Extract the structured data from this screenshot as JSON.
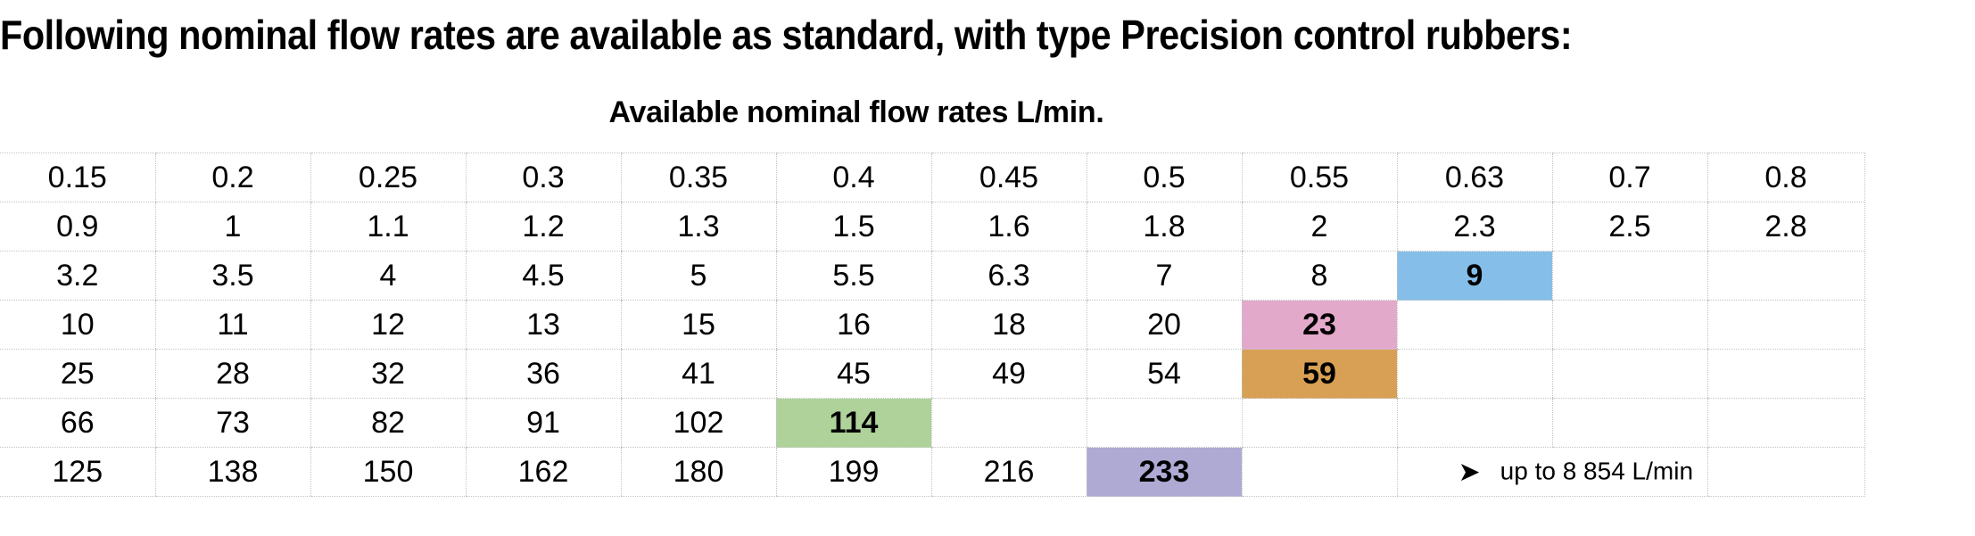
{
  "heading": "Following nominal flow rates are available as standard, with type Precision control rubbers:",
  "table_caption": "Available nominal flow rates L/min.",
  "rows": [
    [
      "0.15",
      "0.2",
      "0.25",
      "0.3",
      "0.35",
      "0.4",
      "0.45",
      "0.5",
      "0.55",
      "0.63",
      "0.7",
      "0.8"
    ],
    [
      "0.9",
      "1",
      "1.1",
      "1.2",
      "1.3",
      "1.5",
      "1.6",
      "1.8",
      "2",
      "2.3",
      "2.5",
      "2.8"
    ],
    [
      "3.2",
      "3.5",
      "4",
      "4.5",
      "5",
      "5.5",
      "6.3",
      "7",
      "8",
      "9",
      "",
      ""
    ],
    [
      "10",
      "11",
      "12",
      "13",
      "15",
      "16",
      "18",
      "20",
      "23",
      "",
      "",
      ""
    ],
    [
      "25",
      "28",
      "32",
      "36",
      "41",
      "45",
      "49",
      "54",
      "59",
      "",
      "",
      ""
    ],
    [
      "66",
      "73",
      "82",
      "91",
      "102",
      "114",
      "",
      "",
      "",
      "",
      "",
      ""
    ],
    [
      "125",
      "138",
      "150",
      "162",
      "180",
      "199",
      "216",
      "233",
      "",
      "",
      "",
      ""
    ]
  ],
  "highlights": [
    {
      "row": 2,
      "col": 9,
      "color": "#85bfe9"
    },
    {
      "row": 3,
      "col": 8,
      "color": "#e3a9cb"
    },
    {
      "row": 4,
      "col": 8,
      "color": "#d8a054"
    },
    {
      "row": 5,
      "col": 5,
      "color": "#afd29b"
    },
    {
      "row": 6,
      "col": 7,
      "color": "#aeaad3"
    }
  ],
  "note": {
    "row": 6,
    "col": 9,
    "span": 2,
    "icon": "arrowhead-icon",
    "glyph": "➤",
    "text": "up to 8 854 L/min"
  }
}
